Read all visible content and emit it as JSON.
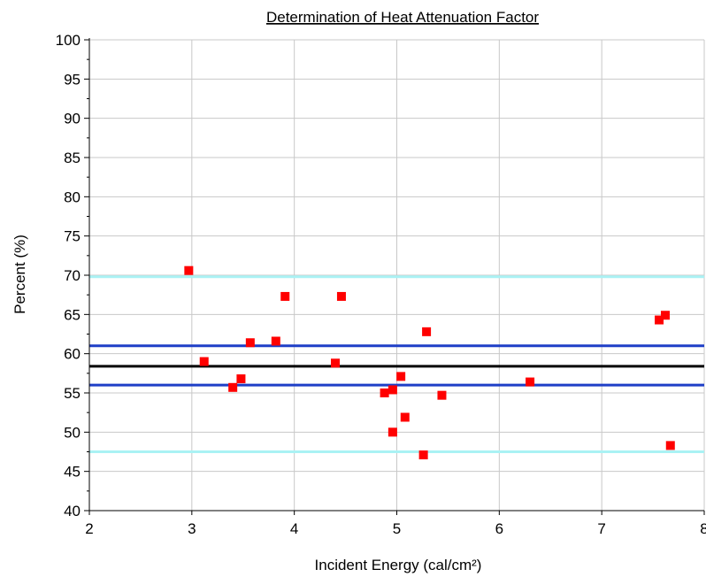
{
  "chart_data": {
    "type": "scatter",
    "title": "Determination of Heat Attenuation Factor",
    "xlabel": "Incident Energy (cal/cm²)",
    "ylabel": "Percent (%)",
    "xlim": [
      2,
      8
    ],
    "ylim": [
      40,
      100
    ],
    "x_ticks": [
      "2",
      "3",
      "4",
      "5",
      "6",
      "7",
      "8"
    ],
    "y_ticks": [
      "40",
      "45",
      "50",
      "55",
      "60",
      "65",
      "70",
      "75",
      "80",
      "85",
      "90",
      "95",
      "100"
    ],
    "grid": true,
    "points": [
      {
        "x": 2.97,
        "y": 70.6
      },
      {
        "x": 3.12,
        "y": 59.0
      },
      {
        "x": 3.4,
        "y": 55.7
      },
      {
        "x": 3.48,
        "y": 56.8
      },
      {
        "x": 3.57,
        "y": 61.4
      },
      {
        "x": 3.82,
        "y": 61.6
      },
      {
        "x": 3.91,
        "y": 67.3
      },
      {
        "x": 4.4,
        "y": 58.8
      },
      {
        "x": 4.46,
        "y": 67.3
      },
      {
        "x": 4.88,
        "y": 55.0
      },
      {
        "x": 4.96,
        "y": 55.4
      },
      {
        "x": 4.96,
        "y": 50.0
      },
      {
        "x": 5.04,
        "y": 57.1
      },
      {
        "x": 5.08,
        "y": 51.9
      },
      {
        "x": 5.26,
        "y": 47.1
      },
      {
        "x": 5.29,
        "y": 62.8
      },
      {
        "x": 5.44,
        "y": 54.7
      },
      {
        "x": 6.3,
        "y": 56.4
      },
      {
        "x": 7.56,
        "y": 64.3
      },
      {
        "x": 7.62,
        "y": 64.9
      },
      {
        "x": 7.67,
        "y": 48.3
      }
    ],
    "reference_lines": [
      {
        "y": 69.8,
        "color": "#aaf2f4"
      },
      {
        "y": 61.0,
        "color": "#1f3fc7"
      },
      {
        "y": 58.4,
        "color": "#000000"
      },
      {
        "y": 56.0,
        "color": "#1f3fc7"
      },
      {
        "y": 47.5,
        "color": "#aaf2f4"
      }
    ],
    "marker_color": "#ff0000",
    "grid_color": "#c8c8c8"
  }
}
